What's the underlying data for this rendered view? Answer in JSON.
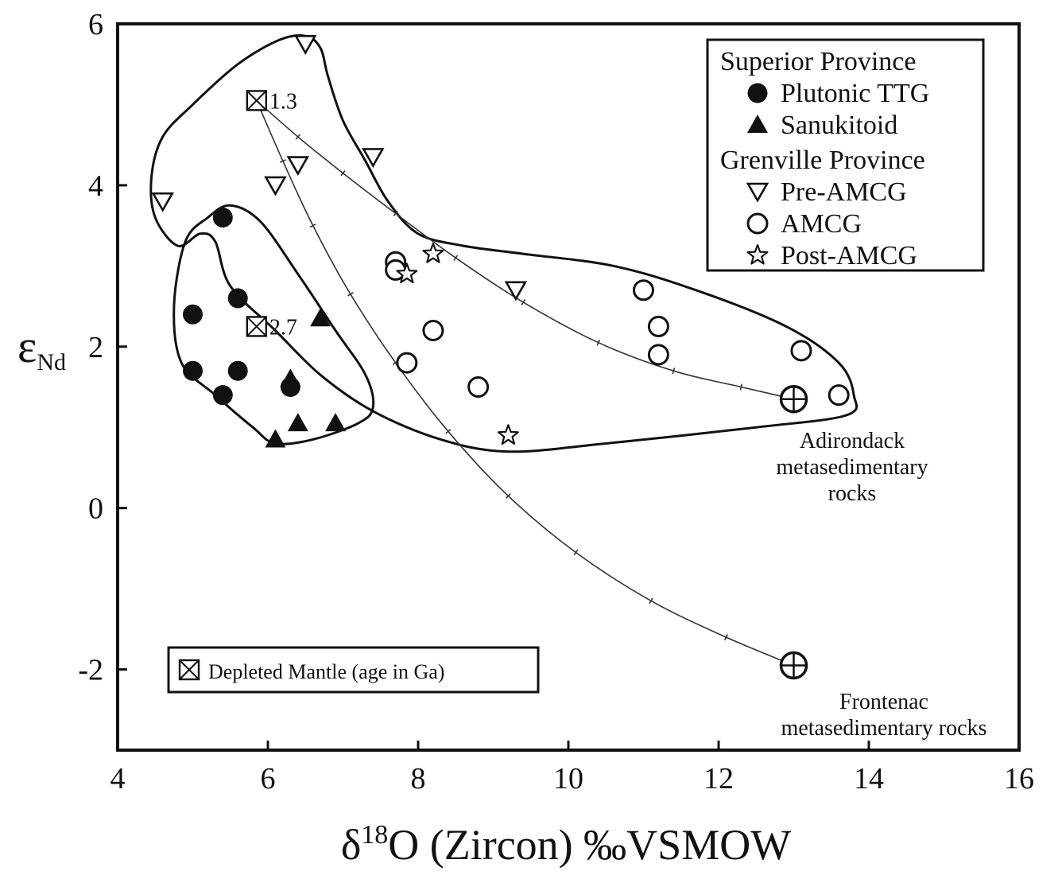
{
  "chart_data": {
    "type": "scatter",
    "title": "",
    "xlabel": {
      "prefix": "δ",
      "sup": "18",
      "main": "O (Zircon) ‰VSMOW"
    },
    "ylabel": {
      "main": "ε",
      "sub": "Nd"
    },
    "xlim": [
      4,
      16
    ],
    "ylim": [
      -3,
      6
    ],
    "xticks": [
      4,
      6,
      8,
      10,
      12,
      14,
      16
    ],
    "yticks": [
      6,
      4,
      2,
      0,
      -2
    ],
    "ytick_labels": [
      "6",
      "4",
      "2",
      "0",
      "-2"
    ],
    "grid": false,
    "legend": {
      "placement": "top-right",
      "groups": [
        {
          "title": "Superior Province",
          "entries": [
            {
              "label": "Plutonic TTG",
              "marker": "filled-circle"
            },
            {
              "label": "Sanukitoid",
              "marker": "filled-triangle"
            }
          ]
        },
        {
          "title": "Grenville Province",
          "entries": [
            {
              "label": "Pre-AMCG",
              "marker": "open-down-triangle"
            },
            {
              "label": "AMCG",
              "marker": "open-circle"
            },
            {
              "label": "Post-AMCG",
              "marker": "open-star"
            }
          ]
        }
      ]
    },
    "series": [
      {
        "name": "Plutonic TTG",
        "marker": "filled-circle",
        "points": [
          [
            5.4,
            3.6
          ],
          [
            5.0,
            2.4
          ],
          [
            5.6,
            2.6
          ],
          [
            5.0,
            1.7
          ],
          [
            5.6,
            1.7
          ],
          [
            5.4,
            1.4
          ],
          [
            6.3,
            1.5
          ]
        ]
      },
      {
        "name": "Sanukitoid",
        "marker": "filled-triangle",
        "points": [
          [
            6.7,
            2.35
          ],
          [
            6.3,
            1.6
          ],
          [
            6.4,
            1.05
          ],
          [
            6.9,
            1.05
          ],
          [
            6.1,
            0.85
          ]
        ]
      },
      {
        "name": "Pre-AMCG",
        "marker": "open-down-triangle",
        "points": [
          [
            6.5,
            5.75
          ],
          [
            4.6,
            3.8
          ],
          [
            6.1,
            4.0
          ],
          [
            6.4,
            4.25
          ],
          [
            7.4,
            4.35
          ],
          [
            9.3,
            2.7
          ]
        ]
      },
      {
        "name": "AMCG",
        "marker": "open-circle",
        "points": [
          [
            7.7,
            3.05
          ],
          [
            7.7,
            2.95
          ],
          [
            7.85,
            1.8
          ],
          [
            8.2,
            2.2
          ],
          [
            8.8,
            1.5
          ],
          [
            11.0,
            2.7
          ],
          [
            11.2,
            2.25
          ],
          [
            11.2,
            1.9
          ],
          [
            13.1,
            1.95
          ],
          [
            13.6,
            1.4
          ]
        ]
      },
      {
        "name": "Post-AMCG",
        "marker": "open-star",
        "points": [
          [
            8.2,
            3.15
          ],
          [
            7.85,
            2.9
          ],
          [
            9.2,
            0.9
          ]
        ]
      }
    ],
    "depleted_mantle": [
      {
        "label": "1.3",
        "x": 5.85,
        "y": 5.05
      },
      {
        "label": "2.7",
        "x": 5.85,
        "y": 2.25
      }
    ],
    "mantle_legend": "Depleted Mantle (age in Ga)",
    "endmembers": [
      {
        "x": 13.0,
        "y": 1.35,
        "label_lines": [
          "Adirondack",
          "metasedimentary",
          "rocks"
        ]
      },
      {
        "x": 13.0,
        "y": -1.95,
        "label_lines": [
          "Frontenac",
          "metasedimentary rocks"
        ]
      }
    ],
    "mixing_curves": [
      {
        "from": "1.3",
        "to": "Adirondack",
        "points": [
          [
            5.85,
            5.05
          ],
          [
            6.4,
            4.6
          ],
          [
            7.0,
            4.15
          ],
          [
            7.7,
            3.65
          ],
          [
            8.5,
            3.1
          ],
          [
            9.4,
            2.55
          ],
          [
            10.4,
            2.05
          ],
          [
            11.4,
            1.7
          ],
          [
            12.3,
            1.5
          ],
          [
            13.0,
            1.35
          ]
        ]
      },
      {
        "from": "1.3",
        "to": "Frontenac",
        "points": [
          [
            5.85,
            5.05
          ],
          [
            6.2,
            4.3
          ],
          [
            6.6,
            3.5
          ],
          [
            7.1,
            2.65
          ],
          [
            7.7,
            1.8
          ],
          [
            8.4,
            0.95
          ],
          [
            9.2,
            0.15
          ],
          [
            10.1,
            -0.55
          ],
          [
            11.1,
            -1.15
          ],
          [
            12.1,
            -1.6
          ],
          [
            13.0,
            -1.95
          ]
        ]
      }
    ],
    "fields": [
      {
        "name": "superior-field",
        "outline": [
          [
            5.5,
            3.75
          ],
          [
            5.2,
            3.6
          ],
          [
            4.9,
            3.3
          ],
          [
            4.75,
            2.5
          ],
          [
            4.85,
            1.8
          ],
          [
            5.3,
            1.4
          ],
          [
            5.8,
            1.0
          ],
          [
            6.1,
            0.8
          ],
          [
            6.6,
            0.85
          ],
          [
            7.2,
            1.05
          ],
          [
            7.4,
            1.25
          ],
          [
            7.3,
            1.65
          ],
          [
            6.9,
            2.2
          ],
          [
            6.4,
            2.9
          ],
          [
            5.9,
            3.55
          ]
        ]
      },
      {
        "name": "grenville-field",
        "outline": [
          [
            6.5,
            5.85
          ],
          [
            6.15,
            5.8
          ],
          [
            5.6,
            5.5
          ],
          [
            5.0,
            5.0
          ],
          [
            4.6,
            4.6
          ],
          [
            4.45,
            4.1
          ],
          [
            4.5,
            3.6
          ],
          [
            4.8,
            3.25
          ],
          [
            5.1,
            3.4
          ],
          [
            5.3,
            3.3
          ],
          [
            5.5,
            2.75
          ],
          [
            6.1,
            2.2
          ],
          [
            6.7,
            1.65
          ],
          [
            7.4,
            1.2
          ],
          [
            8.3,
            0.85
          ],
          [
            9.2,
            0.7
          ],
          [
            10.5,
            0.8
          ],
          [
            12.5,
            1.0
          ],
          [
            13.7,
            1.15
          ],
          [
            13.8,
            1.4
          ],
          [
            13.6,
            1.8
          ],
          [
            12.9,
            2.25
          ],
          [
            11.7,
            2.7
          ],
          [
            10.6,
            3.0
          ],
          [
            9.4,
            3.15
          ],
          [
            8.6,
            3.25
          ],
          [
            8.0,
            3.4
          ],
          [
            7.6,
            3.8
          ],
          [
            7.3,
            4.3
          ],
          [
            7.0,
            4.8
          ],
          [
            6.8,
            5.35
          ],
          [
            6.7,
            5.7
          ]
        ]
      }
    ]
  }
}
